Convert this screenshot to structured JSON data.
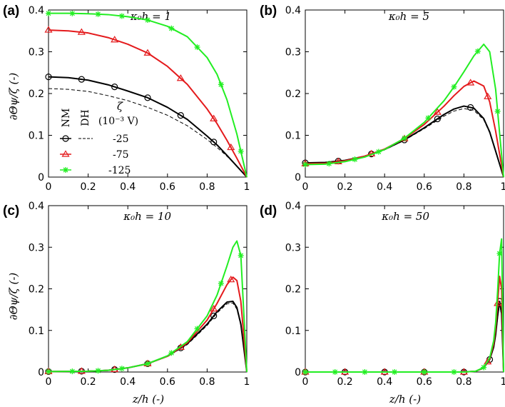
{
  "colors": {
    "nm": "#000000",
    "red": "#e41a1c",
    "green": "#22ee22",
    "axis": "#000000"
  },
  "legend": {
    "nm_label": "NM",
    "dh_label": "DH",
    "zeta_label": "ζ",
    "units_label": "(10⁻³ V)",
    "entries": [
      {
        "value": "-25",
        "color": "black",
        "marker": "circle"
      },
      {
        "value": "-75",
        "color": "red",
        "marker": "triangle"
      },
      {
        "value": "-125",
        "color": "green",
        "marker": "asterisk"
      }
    ]
  },
  "chart_data": [
    {
      "type": "line",
      "panel_label": "(a)",
      "annotation": "κ₀h = 1",
      "xlabel": "",
      "ylabel": "∂Θψ/ζ (-)",
      "xlim": [
        0,
        1
      ],
      "ylim": [
        0,
        0.4
      ],
      "xticks": [
        "0",
        "0.2",
        "0.4",
        "0.6",
        "0.8",
        "1"
      ],
      "yticks": [
        "0",
        "0.1",
        "0.2",
        "0.3",
        "0.4"
      ],
      "x": [
        0,
        0.1,
        0.2,
        0.3,
        0.4,
        0.5,
        0.6,
        0.7,
        0.8,
        0.85,
        0.9,
        0.95,
        1.0
      ],
      "series": [
        {
          "name": "-25",
          "color": "black",
          "marker": "circle",
          "values": [
            0.24,
            0.238,
            0.232,
            0.221,
            0.206,
            0.19,
            0.167,
            0.138,
            0.098,
            0.077,
            0.052,
            0.026,
            0.0
          ]
        },
        {
          "name": "-25",
          "color": "black",
          "dashed": true,
          "values": [
            0.212,
            0.21,
            0.205,
            0.195,
            0.183,
            0.167,
            0.148,
            0.123,
            0.09,
            0.071,
            0.05,
            0.026,
            0.0
          ]
        },
        {
          "name": "-75",
          "color": "red",
          "marker": "triangle",
          "values": [
            0.352,
            0.35,
            0.345,
            0.334,
            0.318,
            0.297,
            0.265,
            0.222,
            0.163,
            0.128,
            0.088,
            0.045,
            0.0
          ]
        },
        {
          "name": "-125",
          "color": "green",
          "marker": "asterisk",
          "values": [
            0.392,
            0.392,
            0.391,
            0.389,
            0.384,
            0.376,
            0.361,
            0.336,
            0.286,
            0.246,
            0.185,
            0.103,
            0.0
          ]
        }
      ]
    },
    {
      "type": "line",
      "panel_label": "(b)",
      "annotation": "κ₀h = 5",
      "xlabel": "",
      "ylabel": "",
      "xlim": [
        0,
        1
      ],
      "ylim": [
        0,
        0.4
      ],
      "xticks": [
        "0",
        "0.2",
        "0.4",
        "0.6",
        "0.8",
        "1"
      ],
      "yticks": [
        "0",
        "0.1",
        "0.2",
        "0.3",
        "0.4"
      ],
      "x": [
        0,
        0.1,
        0.2,
        0.3,
        0.4,
        0.5,
        0.6,
        0.7,
        0.75,
        0.8,
        0.85,
        0.9,
        0.93,
        0.96,
        1.0
      ],
      "series": [
        {
          "name": "-25",
          "color": "black",
          "marker": "circle",
          "values": [
            0.034,
            0.035,
            0.04,
            0.05,
            0.066,
            0.089,
            0.118,
            0.15,
            0.163,
            0.17,
            0.165,
            0.14,
            0.108,
            0.062,
            0.0
          ]
        },
        {
          "name": "-25",
          "color": "black",
          "dashed": true,
          "values": [
            0.033,
            0.034,
            0.039,
            0.049,
            0.065,
            0.088,
            0.116,
            0.146,
            0.158,
            0.164,
            0.16,
            0.137,
            0.106,
            0.06,
            0.0
          ]
        },
        {
          "name": "-75",
          "color": "red",
          "marker": "triangle",
          "values": [
            0.032,
            0.033,
            0.039,
            0.05,
            0.067,
            0.092,
            0.126,
            0.17,
            0.195,
            0.217,
            0.23,
            0.218,
            0.18,
            0.11,
            0.0
          ]
        },
        {
          "name": "-125",
          "color": "green",
          "marker": "asterisk",
          "values": [
            0.03,
            0.031,
            0.037,
            0.048,
            0.066,
            0.093,
            0.131,
            0.183,
            0.216,
            0.252,
            0.29,
            0.318,
            0.3,
            0.21,
            0.0
          ]
        }
      ]
    },
    {
      "type": "line",
      "panel_label": "(c)",
      "annotation": "κ₀h = 10",
      "xlabel": "z/h (-)",
      "ylabel": "∂Θψ/ζ (-)",
      "xlim": [
        0,
        1
      ],
      "ylim": [
        0,
        0.4
      ],
      "xticks": [
        "0",
        "0.2",
        "0.4",
        "0.6",
        "0.8",
        "1"
      ],
      "yticks": [
        "0",
        "0.1",
        "0.2",
        "0.3",
        "0.4"
      ],
      "x": [
        0,
        0.2,
        0.3,
        0.4,
        0.5,
        0.6,
        0.7,
        0.8,
        0.85,
        0.9,
        0.93,
        0.95,
        0.97,
        1.0
      ],
      "series": [
        {
          "name": "-25",
          "color": "black",
          "marker": "circle",
          "values": [
            0.001,
            0.002,
            0.004,
            0.01,
            0.02,
            0.038,
            0.068,
            0.115,
            0.145,
            0.168,
            0.17,
            0.155,
            0.115,
            0.0
          ]
        },
        {
          "name": "-25",
          "color": "black",
          "dashed": true,
          "values": [
            0.001,
            0.002,
            0.004,
            0.01,
            0.02,
            0.037,
            0.066,
            0.112,
            0.142,
            0.164,
            0.166,
            0.151,
            0.112,
            0.0
          ]
        },
        {
          "name": "-75",
          "color": "red",
          "marker": "triangle",
          "values": [
            0.001,
            0.002,
            0.004,
            0.01,
            0.02,
            0.038,
            0.07,
            0.125,
            0.165,
            0.21,
            0.228,
            0.22,
            0.17,
            0.0
          ]
        },
        {
          "name": "-125",
          "color": "green",
          "marker": "asterisk",
          "values": [
            0.001,
            0.002,
            0.004,
            0.01,
            0.02,
            0.039,
            0.073,
            0.135,
            0.185,
            0.255,
            0.3,
            0.315,
            0.28,
            0.0
          ]
        }
      ]
    },
    {
      "type": "line",
      "panel_label": "(d)",
      "annotation": "κ₀h = 50",
      "xlabel": "z/h (-)",
      "ylabel": "",
      "xlim": [
        0,
        1
      ],
      "ylim": [
        0,
        0.4
      ],
      "xticks": [
        "0",
        "0.2",
        "0.4",
        "0.6",
        "0.8",
        "1"
      ],
      "yticks": [
        "0",
        "0.1",
        "0.2",
        "0.3",
        "0.4"
      ],
      "x": [
        0,
        0.8,
        0.86,
        0.9,
        0.93,
        0.95,
        0.96,
        0.97,
        0.98,
        0.99,
        1.0
      ],
      "series": [
        {
          "name": "-25",
          "color": "black",
          "marker": "circle",
          "values": [
            0,
            0,
            0.002,
            0.01,
            0.03,
            0.06,
            0.09,
            0.135,
            0.17,
            0.14,
            0.0
          ]
        },
        {
          "name": "-25",
          "color": "black",
          "dashed": true,
          "values": [
            0,
            0,
            0.002,
            0.01,
            0.029,
            0.058,
            0.087,
            0.13,
            0.164,
            0.135,
            0.0
          ]
        },
        {
          "name": "-75",
          "color": "red",
          "marker": "triangle",
          "values": [
            0,
            0,
            0.002,
            0.01,
            0.032,
            0.068,
            0.105,
            0.165,
            0.23,
            0.2,
            0.0
          ]
        },
        {
          "name": "-125",
          "color": "green",
          "marker": "asterisk",
          "values": [
            0,
            0,
            0.002,
            0.011,
            0.034,
            0.075,
            0.118,
            0.195,
            0.285,
            0.32,
            0.0
          ]
        }
      ]
    }
  ]
}
